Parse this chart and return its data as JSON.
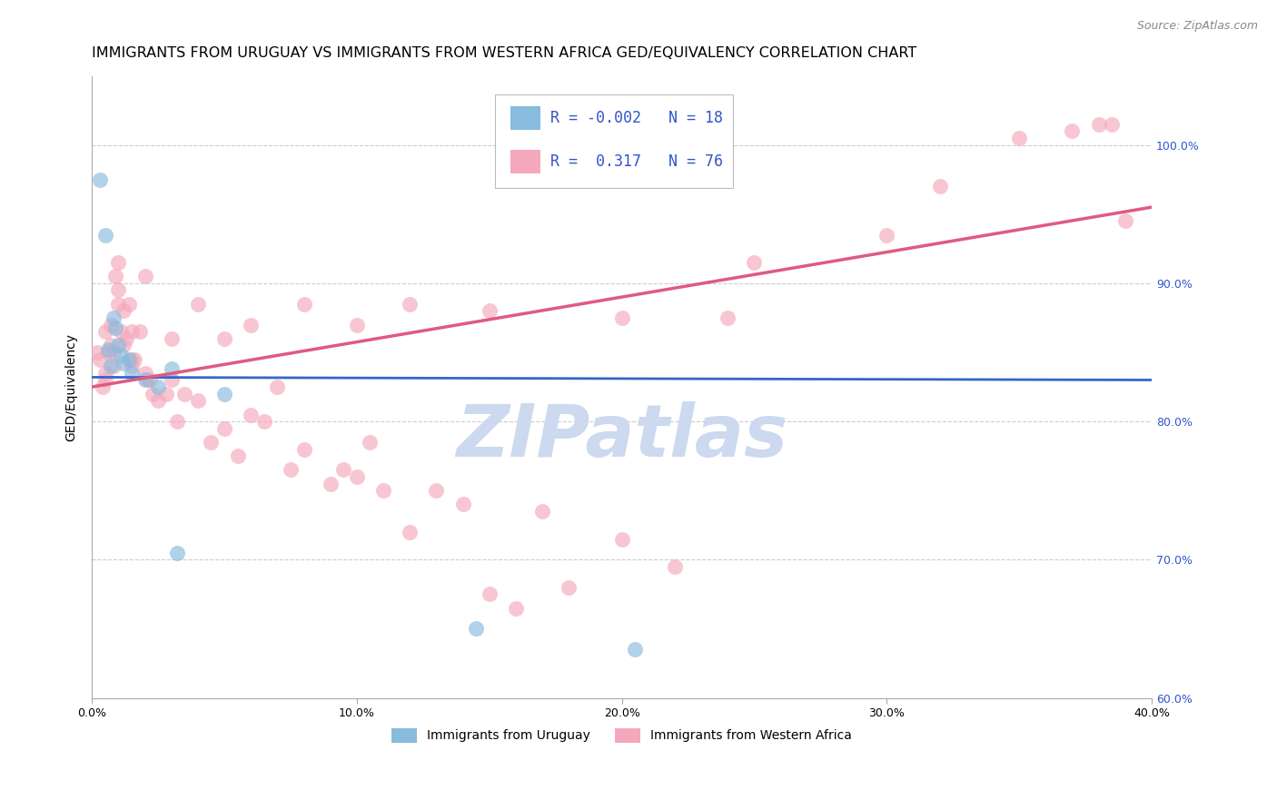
{
  "title": "IMMIGRANTS FROM URUGUAY VS IMMIGRANTS FROM WESTERN AFRICA GED/EQUIVALENCY CORRELATION CHART",
  "source": "Source: ZipAtlas.com",
  "ylabel": "GED/Equivalency",
  "x_tick_labels": [
    "0.0%",
    "10.0%",
    "20.0%",
    "30.0%",
    "40.0%"
  ],
  "x_tick_values": [
    0.0,
    10.0,
    20.0,
    30.0,
    40.0
  ],
  "y_tick_labels_right": [
    "100.0%",
    "90.0%",
    "80.0%",
    "70.0%",
    "60.0%"
  ],
  "y_tick_values_right": [
    100.0,
    90.0,
    80.0,
    70.0,
    60.0
  ],
  "xlim": [
    0.0,
    40.0
  ],
  "ylim": [
    60.0,
    105.0
  ],
  "blue_color": "#88bbdd",
  "pink_color": "#f5a8bc",
  "blue_line_color": "#3366cc",
  "pink_line_color": "#e05a80",
  "watermark": "ZIPatlas",
  "watermark_color": "#ccd9ee",
  "legend_text_color": "#3355cc",
  "title_fontsize": 11.5,
  "axis_label_fontsize": 10,
  "tick_fontsize": 9,
  "legend_fontsize": 12,
  "blue_line_x": [
    0.0,
    40.0
  ],
  "blue_line_y": [
    83.2,
    83.0
  ],
  "pink_line_x": [
    0.0,
    40.0
  ],
  "pink_line_y": [
    82.5,
    95.5
  ],
  "blue_scatter_x": [
    0.3,
    0.5,
    0.8,
    0.9,
    1.0,
    1.1,
    1.2,
    1.4,
    1.5,
    2.0,
    2.5,
    3.0,
    3.2,
    5.0,
    14.5,
    20.5,
    0.7,
    0.6
  ],
  "blue_scatter_y": [
    97.5,
    93.5,
    87.5,
    86.8,
    85.5,
    84.8,
    84.2,
    84.5,
    83.5,
    83.0,
    82.5,
    83.8,
    70.5,
    82.0,
    65.0,
    63.5,
    84.0,
    85.2
  ],
  "pink_scatter_x": [
    0.2,
    0.3,
    0.4,
    0.5,
    0.5,
    0.6,
    0.7,
    0.7,
    0.8,
    0.9,
    1.0,
    1.0,
    1.1,
    1.2,
    1.2,
    1.3,
    1.4,
    1.5,
    1.5,
    1.6,
    1.8,
    2.0,
    2.1,
    2.2,
    2.3,
    2.5,
    2.8,
    3.0,
    3.2,
    3.5,
    4.0,
    4.5,
    5.0,
    5.5,
    6.0,
    6.5,
    7.0,
    7.5,
    8.0,
    9.0,
    9.5,
    10.0,
    10.5,
    11.0,
    12.0,
    13.0,
    14.0,
    15.0,
    16.0,
    17.0,
    18.0,
    20.0,
    22.0,
    0.5,
    0.8,
    1.0,
    1.5,
    2.0,
    3.0,
    4.0,
    5.0,
    6.0,
    8.0,
    10.0,
    12.0,
    15.0,
    20.0,
    25.0,
    30.0,
    32.0,
    35.0,
    37.0,
    38.0,
    38.5,
    39.0,
    24.0
  ],
  "pink_scatter_y": [
    85.0,
    84.5,
    82.5,
    83.5,
    86.5,
    85.0,
    87.0,
    85.5,
    84.0,
    90.5,
    91.5,
    89.5,
    86.5,
    88.0,
    85.5,
    86.0,
    88.5,
    84.5,
    86.5,
    84.5,
    86.5,
    83.5,
    83.0,
    83.0,
    82.0,
    81.5,
    82.0,
    83.0,
    80.0,
    82.0,
    81.5,
    78.5,
    79.5,
    77.5,
    80.5,
    80.0,
    82.5,
    76.5,
    78.0,
    75.5,
    76.5,
    76.0,
    78.5,
    75.0,
    72.0,
    75.0,
    74.0,
    67.5,
    66.5,
    73.5,
    68.0,
    71.5,
    69.5,
    83.0,
    85.0,
    88.5,
    84.0,
    90.5,
    86.0,
    88.5,
    86.0,
    87.0,
    88.5,
    87.0,
    88.5,
    88.0,
    87.5,
    91.5,
    93.5,
    97.0,
    100.5,
    101.0,
    101.5,
    101.5,
    94.5,
    87.5
  ]
}
